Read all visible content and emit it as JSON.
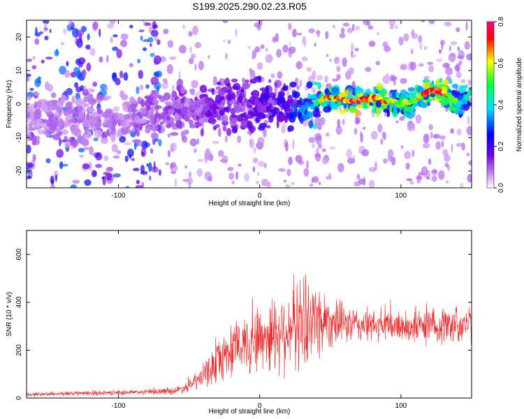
{
  "title": "S199.2025.290.02.23.R05",
  "chart_data": [
    {
      "type": "heatmap",
      "xlabel": "Height of straight line (km)",
      "ylabel": "Frequency (Hz)",
      "xlim": [
        -165,
        150
      ],
      "ylim": [
        -25,
        25
      ],
      "xticks": [
        -100,
        0,
        100
      ],
      "yticks": [
        -20,
        -10,
        0,
        10,
        20
      ],
      "colorbar": {
        "label": "Normalized spectral amplitude",
        "range": [
          0,
          0.8
        ],
        "ticks": [
          "0.0",
          "0.2",
          "0.4",
          "0.6",
          "0.8"
        ],
        "colors": [
          "#ffffff",
          "#c890f0",
          "#7000e0",
          "#0000ff",
          "#00e0ff",
          "#00ff40",
          "#ffff00",
          "#ff0000",
          "#ff0080"
        ]
      },
      "ridge": {
        "x": [
          -100,
          -80,
          -60,
          -40,
          -20,
          0,
          20,
          40,
          50,
          60,
          70,
          80,
          90,
          100,
          110,
          120,
          130,
          140,
          150
        ],
        "freq_hz": [
          -4,
          -3,
          -2,
          -1,
          0,
          0,
          0,
          0.5,
          2,
          1,
          1,
          2,
          1,
          0,
          1,
          4,
          4,
          0,
          3
        ],
        "amplitude": [
          0.12,
          0.15,
          0.18,
          0.2,
          0.22,
          0.25,
          0.3,
          0.55,
          0.7,
          0.75,
          0.8,
          0.75,
          0.7,
          0.55,
          0.6,
          0.8,
          0.8,
          0.5,
          0.45
        ]
      }
    },
    {
      "type": "line",
      "xlabel": "Height of straight line (km)",
      "ylabel": "SNR (10 * v/v)",
      "xlim": [
        -165,
        150
      ],
      "ylim": [
        0,
        700
      ],
      "xticks": [
        -100,
        0,
        100
      ],
      "yticks": [
        0,
        200,
        400,
        600
      ],
      "color": "#ee2222",
      "envelope": {
        "x": [
          -165,
          -120,
          -80,
          -60,
          -50,
          -40,
          -30,
          -20,
          -10,
          0,
          10,
          20,
          30,
          40,
          50,
          60,
          80,
          100,
          120,
          150
        ],
        "mean": [
          15,
          20,
          25,
          30,
          50,
          90,
          150,
          200,
          230,
          250,
          270,
          290,
          320,
          330,
          320,
          310,
          300,
          300,
          300,
          310
        ],
        "spread": [
          8,
          10,
          12,
          15,
          25,
          50,
          90,
          110,
          130,
          150,
          170,
          180,
          200,
          180,
          110,
          80,
          70,
          70,
          80,
          80
        ]
      }
    }
  ]
}
